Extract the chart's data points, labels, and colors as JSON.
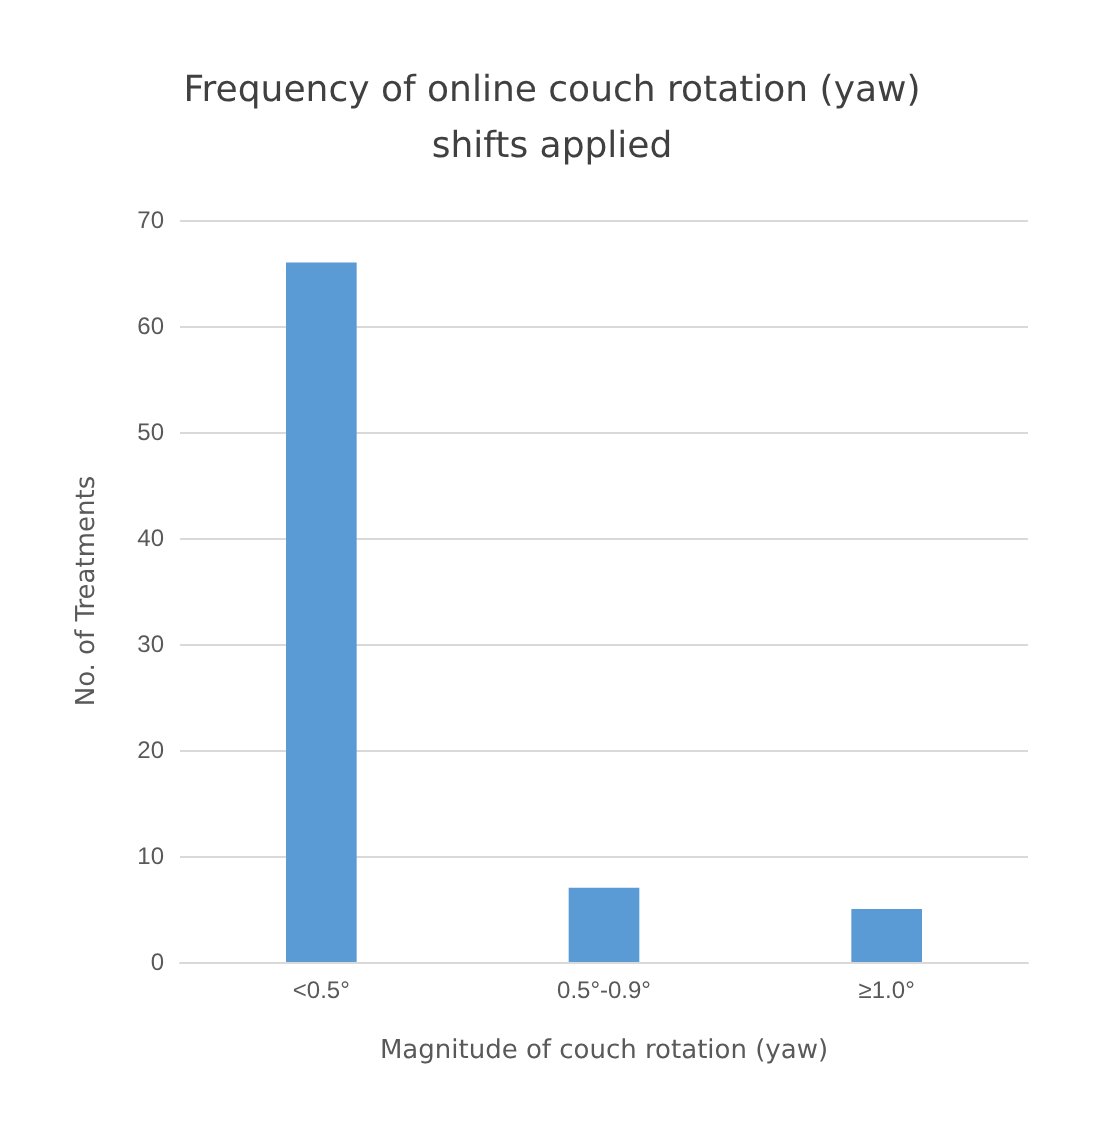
{
  "chart_data": {
    "type": "bar",
    "title": "Frequency of online couch rotation (yaw)\nshifts applied",
    "xlabel": "Magnitude of couch rotation (yaw)",
    "ylabel": "No. of Treatments",
    "categories": [
      "<0.5°",
      "0.5°-0.9°",
      "≥1.0°"
    ],
    "values": [
      66,
      7,
      5
    ],
    "color": "#5b9bd5",
    "ylim": [
      0,
      70
    ],
    "yticks": [
      0,
      10,
      20,
      30,
      40,
      50,
      60,
      70
    ],
    "grid": "y"
  }
}
